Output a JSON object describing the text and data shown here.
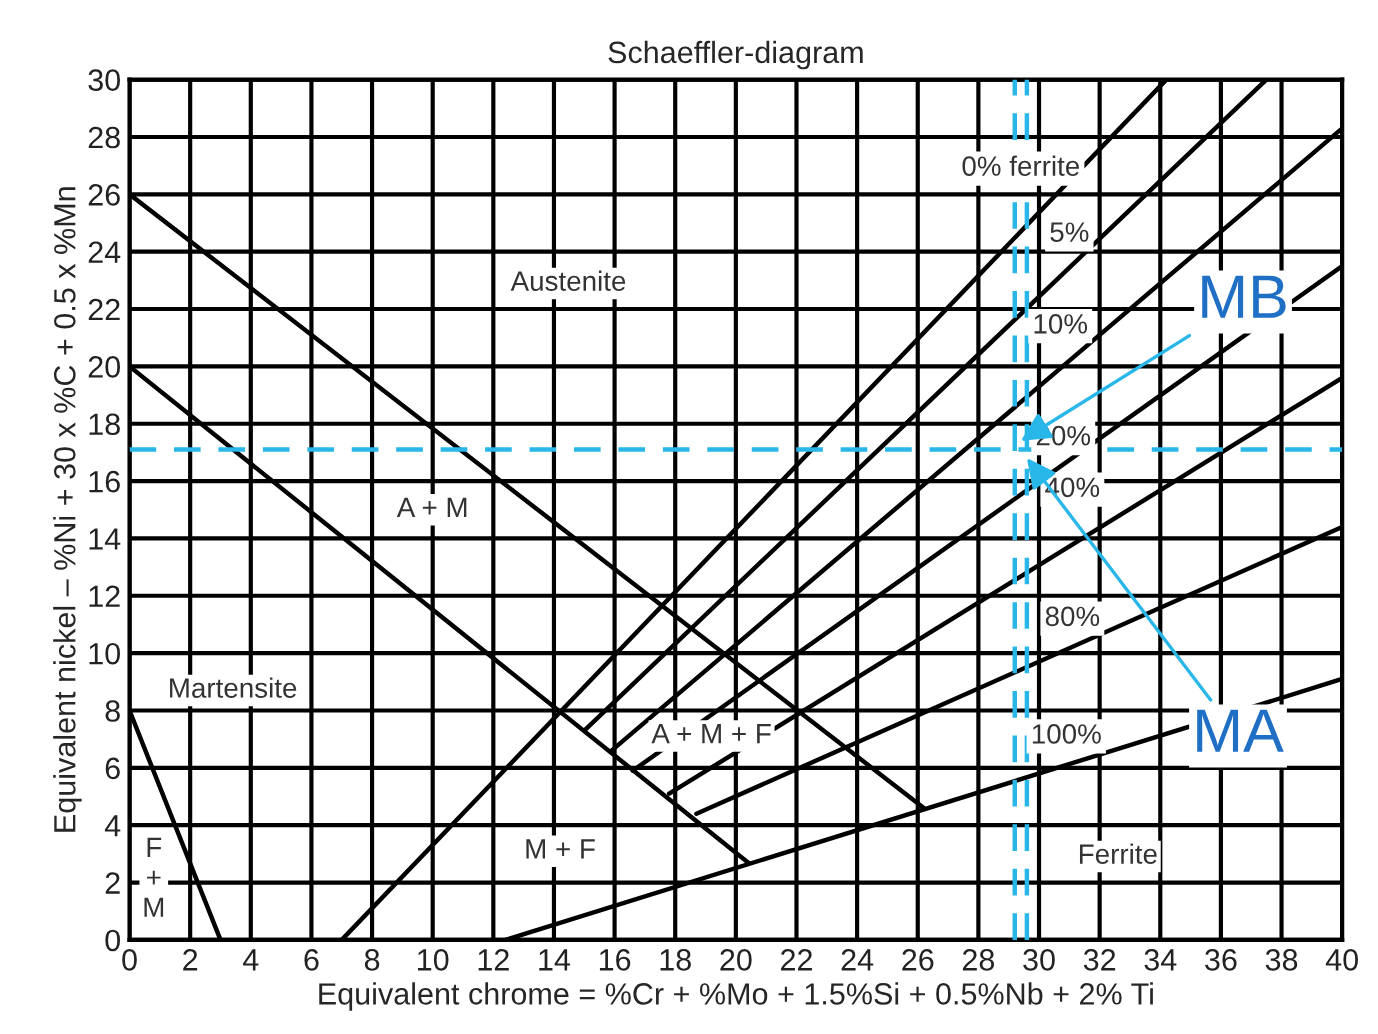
{
  "chart_data": {
    "type": "line",
    "title": "Schaeffler-diagram",
    "xlabel": "Equivalent chrome = %Cr + %Mo + 1.5%Si + 0.5%Nb + 2% Ti",
    "ylabel": "Equivalent nickel – %Ni + 30 x %C + 0.5 x %Mn",
    "xlim": [
      0,
      40
    ],
    "ylim": [
      0,
      30
    ],
    "xticks": [
      0,
      2,
      4,
      6,
      8,
      10,
      12,
      14,
      16,
      18,
      20,
      22,
      24,
      26,
      28,
      30,
      32,
      34,
      36,
      38,
      40
    ],
    "yticks": [
      0,
      2,
      4,
      6,
      8,
      10,
      12,
      14,
      16,
      18,
      20,
      22,
      24,
      26,
      28,
      30
    ],
    "grid": true,
    "marker": "none",
    "line_style": "solid",
    "series": [
      {
        "color": "#000000",
        "x": [
          0,
          3
        ],
        "values": [
          8,
          0
        ]
      },
      {
        "color": "#000000",
        "x": [
          0,
          26.2
        ],
        "values": [
          26,
          4.6
        ]
      },
      {
        "color": "#000000",
        "x": [
          0,
          20.4
        ],
        "values": [
          20,
          2.7
        ]
      },
      {
        "color": "#000000",
        "x": [
          7,
          34.2
        ],
        "values": [
          0,
          30
        ]
      },
      {
        "color": "#000000",
        "x": [
          15.0,
          37.5
        ],
        "values": [
          7.3,
          30
        ]
      },
      {
        "color": "#000000",
        "x": [
          15.9,
          40
        ],
        "values": [
          6.6,
          28.3
        ]
      },
      {
        "color": "#000000",
        "x": [
          16.6,
          40
        ],
        "values": [
          5.9,
          23.5
        ]
      },
      {
        "color": "#000000",
        "x": [
          17.8,
          40
        ],
        "values": [
          5.1,
          19.6
        ]
      },
      {
        "color": "#000000",
        "x": [
          18.7,
          40
        ],
        "values": [
          4.4,
          14.4
        ]
      },
      {
        "color": "#000000",
        "x": [
          12.4,
          40
        ],
        "values": [
          0,
          9.1
        ]
      }
    ],
    "ref_lines": [
      {
        "axis": "x",
        "value": 29.2,
        "color": "#29b6e8",
        "line_style": "dashed"
      },
      {
        "axis": "x",
        "value": 29.6,
        "color": "#29b6e8",
        "line_style": "dashed"
      },
      {
        "axis": "y",
        "value": 17.1,
        "color": "#29b6e8",
        "line_style": "dashed"
      }
    ],
    "annotations": [
      "Austenite",
      "A + M",
      "Martensite",
      "F\n+\nM",
      "A + M + F",
      "M + F",
      "Ferrite",
      {
        "text": "0% ferrite",
        "x": 29.4,
        "y": 26.9
      },
      {
        "text": "5%",
        "x": 31.0,
        "y": 24.6
      },
      {
        "text": "10%",
        "x": 30.7,
        "y": 21.4
      },
      {
        "text": "20%",
        "x": 30.8,
        "y": 17.5
      },
      {
        "text": "40%",
        "x": 31.1,
        "y": 15.7
      },
      {
        "text": "80%",
        "x": 31.1,
        "y": 11.2
      },
      {
        "text": "100%",
        "x": 30.9,
        "y": 7.1
      },
      {
        "text": "MB",
        "x": 29.4,
        "y": 17.4
      },
      {
        "text": "MA",
        "x": 29.6,
        "y": 16.8
      }
    ]
  }
}
